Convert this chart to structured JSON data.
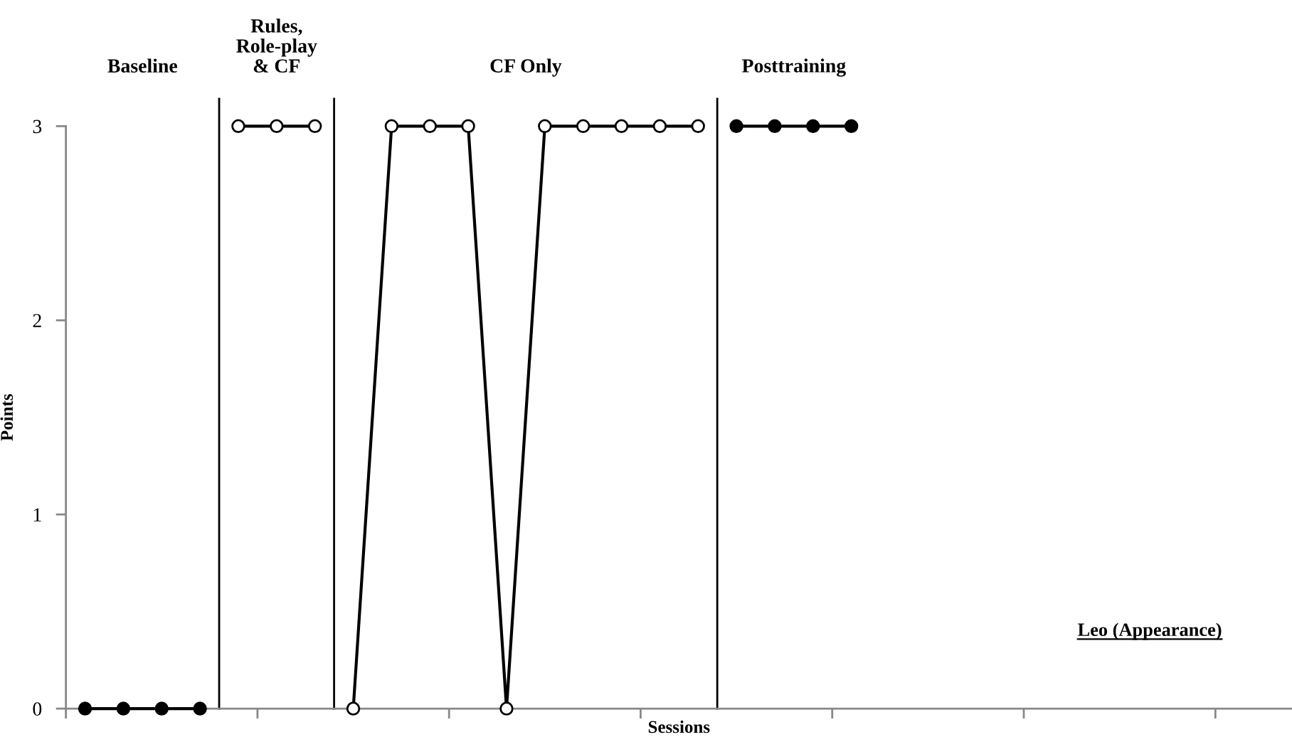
{
  "chart_data": {
    "type": "line",
    "xlabel": "Sessions",
    "ylabel": "Points",
    "categories": [
      null,
      null,
      null,
      null,
      null,
      null,
      null,
      null,
      null,
      null,
      null,
      null,
      null,
      null,
      null,
      null,
      null,
      null,
      null,
      null,
      null,
      null,
      null,
      null,
      null,
      null,
      null,
      null,
      null,
      null,
      null,
      null
    ],
    "series": [
      {
        "color": "#000000",
        "colors": [
          "#000000",
          "#000000",
          "#000000",
          "#000000",
          null,
          null,
          null,
          null,
          null,
          null,
          null,
          null,
          null,
          null,
          null,
          null,
          null,
          null,
          null,
          null,
          null,
          null,
          null,
          null,
          null,
          null,
          null,
          null,
          null,
          null,
          null,
          null
        ],
        "values": [
          0,
          0,
          0,
          0,
          null,
          null,
          null,
          null,
          null,
          null,
          null,
          null,
          null,
          null,
          null,
          null,
          null,
          null,
          null,
          null,
          null,
          null,
          null,
          null,
          null,
          null,
          null,
          null,
          null,
          null,
          null,
          null
        ]
      },
      {
        "color": "#000000",
        "colors": [
          null,
          null,
          null,
          null,
          "#ffffff",
          "#ffffff",
          "#ffffff",
          null,
          null,
          null,
          null,
          null,
          null,
          null,
          null,
          null,
          null,
          null,
          null,
          null,
          null,
          null,
          null,
          null,
          null,
          null,
          null,
          null,
          null,
          null,
          null,
          null
        ],
        "values": [
          null,
          null,
          null,
          null,
          3,
          3,
          3,
          null,
          null,
          null,
          null,
          null,
          null,
          null,
          null,
          null,
          null,
          null,
          null,
          null,
          null,
          null,
          null,
          null,
          null,
          null,
          null,
          null,
          null,
          null,
          null,
          null
        ]
      },
      {
        "color": "#000000",
        "colors": [
          null,
          null,
          null,
          null,
          null,
          null,
          null,
          "#ffffff",
          "#ffffff",
          "#ffffff",
          "#ffffff",
          "#ffffff",
          "#ffffff",
          "#ffffff",
          "#ffffff",
          "#ffffff",
          "#ffffff",
          null,
          null,
          null,
          null,
          null,
          null,
          null,
          null,
          null,
          null,
          null,
          null,
          null,
          null,
          null
        ],
        "values": [
          null,
          null,
          null,
          null,
          null,
          null,
          null,
          0,
          3,
          3,
          3,
          0,
          3,
          3,
          3,
          3,
          3,
          null,
          null,
          null,
          null,
          null,
          null,
          null,
          null,
          null,
          null,
          null,
          null,
          null,
          null,
          null
        ]
      },
      {
        "color": "#000000",
        "colors": [
          null,
          null,
          null,
          null,
          null,
          null,
          null,
          null,
          null,
          null,
          null,
          null,
          null,
          null,
          null,
          null,
          null,
          "#000000",
          "#000000",
          "#000000",
          "#000000",
          null,
          null,
          null,
          null,
          null,
          null,
          null,
          null,
          null,
          null,
          null
        ],
        "values": [
          null,
          null,
          null,
          null,
          null,
          null,
          null,
          null,
          null,
          null,
          null,
          null,
          null,
          null,
          null,
          null,
          null,
          3,
          3,
          3,
          3,
          null,
          null,
          null,
          null,
          null,
          null,
          null,
          null,
          null,
          null,
          null
        ]
      }
    ],
    "ylim": [
      0,
      3
    ],
    "yticks": [
      0,
      1,
      2,
      3
    ],
    "annotations": [
      "Baseline",
      "Rules,\nRole-play\n& CF",
      "CF Only",
      "Posttraining",
      "Leo (Appearance)"
    ],
    "marker": "circle",
    "line_style": "solid",
    "grid": false,
    "legend": false,
    "tick_labels": "y"
  }
}
